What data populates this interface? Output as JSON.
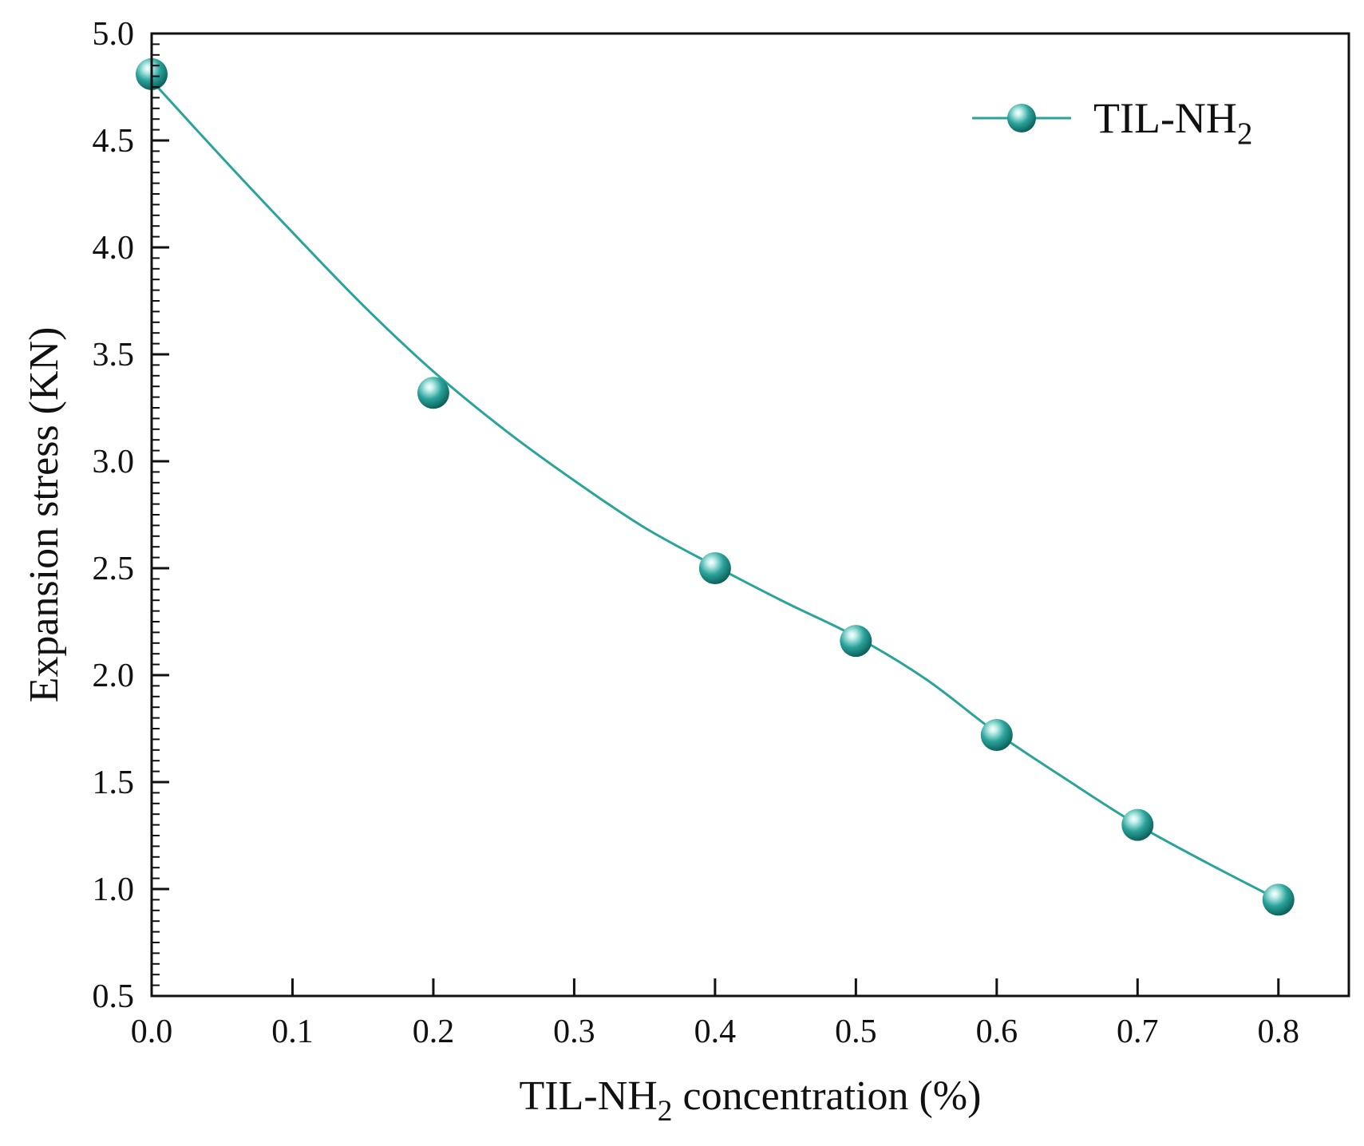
{
  "chart_data": {
    "type": "line",
    "title": "",
    "xlabel_main": "TIL-NH",
    "xlabel_sub": "2",
    "xlabel_tail": " concentration (%)",
    "ylabel": "Expansion stress (KN)",
    "xlim": [
      0,
      0.85
    ],
    "ylim": [
      0.5,
      5.0
    ],
    "xticks": [
      "0.0",
      "0.1",
      "0.2",
      "0.3",
      "0.4",
      "0.5",
      "0.6",
      "0.7",
      "0.8"
    ],
    "yticks": [
      "0.5",
      "1.0",
      "1.5",
      "2.0",
      "2.5",
      "3.0",
      "3.5",
      "4.0",
      "4.5",
      "5.0"
    ],
    "legend_position": "top-right",
    "series": [
      {
        "name_main": "TIL-NH",
        "name_sub": "2",
        "color": "#2aa39b",
        "x": [
          0.0,
          0.2,
          0.4,
          0.5,
          0.6,
          0.7,
          0.8
        ],
        "values": [
          4.81,
          3.32,
          2.5,
          2.16,
          1.72,
          1.3,
          0.95
        ]
      }
    ],
    "fit_curve": {
      "x": [
        0.0,
        0.05,
        0.1,
        0.15,
        0.2,
        0.25,
        0.3,
        0.35,
        0.4,
        0.45,
        0.5,
        0.55,
        0.6,
        0.65,
        0.7,
        0.75,
        0.8
      ],
      "values": [
        4.78,
        4.42,
        4.07,
        3.73,
        3.42,
        3.15,
        2.91,
        2.69,
        2.51,
        2.34,
        2.18,
        1.98,
        1.73,
        1.51,
        1.3,
        1.12,
        0.95
      ]
    }
  }
}
